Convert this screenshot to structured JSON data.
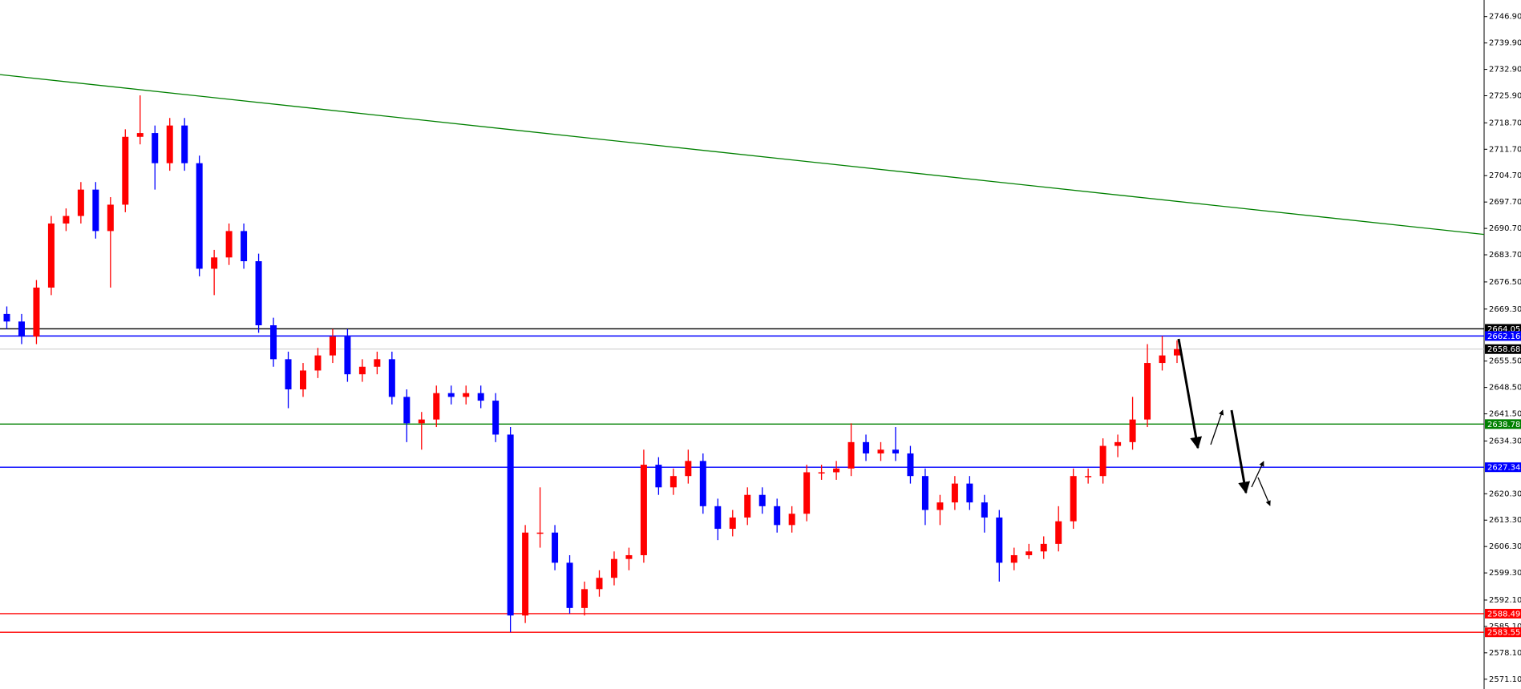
{
  "chart_data": {
    "type": "candlestick",
    "up_color": "#ff0000",
    "down_color": "#0000ff",
    "open": [
      2668,
      2666,
      2662,
      2675,
      2692,
      2694,
      2701,
      2690,
      2697,
      2715,
      2716,
      2708,
      2718,
      2708,
      2680,
      2683,
      2690,
      2682,
      2665,
      2656,
      2648,
      2653,
      2657,
      2662,
      2652,
      2654,
      2656,
      2646,
      2639,
      2640,
      2647,
      2646,
      2647,
      2645,
      2636,
      2588,
      2610,
      2610,
      2602,
      2590,
      2595,
      2598,
      2603,
      2604,
      2628,
      2622,
      2625,
      2629,
      2617,
      2611,
      2614,
      2620,
      2617,
      2612,
      2615,
      2626,
      2626,
      2627,
      2634,
      2631,
      2632,
      2631,
      2625,
      2616,
      2618,
      2623,
      2618,
      2614,
      2602,
      2604,
      2605,
      2607,
      2613,
      2625,
      2625,
      2633,
      2634,
      2640,
      2655,
      2657
    ],
    "high": [
      2670,
      2668,
      2677,
      2694,
      2696,
      2703,
      2703,
      2699,
      2717,
      2726,
      2718,
      2720,
      2720,
      2710,
      2685,
      2692,
      2692,
      2684,
      2667,
      2658,
      2655,
      2659,
      2664,
      2664,
      2656,
      2658,
      2658,
      2648,
      2642,
      2649,
      2649,
      2649,
      2649,
      2647,
      2638,
      2612,
      2622,
      2612,
      2604,
      2597,
      2600,
      2605,
      2606,
      2632,
      2630,
      2627,
      2632,
      2631,
      2619,
      2616,
      2622,
      2622,
      2619,
      2617,
      2628,
      2628,
      2629,
      2639,
      2636,
      2634,
      2638,
      2633,
      2627,
      2620,
      2625,
      2625,
      2620,
      2616,
      2606,
      2607,
      2609,
      2617,
      2627,
      2627,
      2635,
      2636,
      2646,
      2660,
      2662.16,
      2661
    ],
    "low": [
      2664,
      2660,
      2660,
      2673,
      2690,
      2692,
      2688,
      2675,
      2695,
      2713,
      2701,
      2706,
      2706,
      2678,
      2673,
      2681,
      2680,
      2663,
      2654,
      2643,
      2646,
      2651,
      2655,
      2650,
      2650,
      2652,
      2644,
      2634,
      2632,
      2638,
      2644,
      2644,
      2643,
      2634,
      2583.55,
      2586,
      2606,
      2600,
      2588.49,
      2588,
      2593,
      2596,
      2600,
      2602,
      2620,
      2620,
      2623,
      2615,
      2608,
      2609,
      2612,
      2615,
      2610,
      2610,
      2613,
      2624,
      2624,
      2625,
      2629,
      2629,
      2629,
      2623,
      2612,
      2612,
      2616,
      2616,
      2610,
      2597,
      2600,
      2603,
      2603,
      2605,
      2611,
      2623,
      2623,
      2630,
      2632,
      2638,
      2653,
      2655
    ],
    "close": [
      2666,
      2662,
      2675,
      2692,
      2694,
      2701,
      2690,
      2697,
      2715,
      2716,
      2708,
      2718,
      2708,
      2680,
      2683,
      2690,
      2682,
      2665,
      2656,
      2648,
      2653,
      2657,
      2662,
      2652,
      2654,
      2656,
      2646,
      2639,
      2640,
      2647,
      2646,
      2647,
      2645,
      2636,
      2588,
      2610,
      2610,
      2602,
      2590,
      2595,
      2598,
      2603,
      2604,
      2628,
      2622,
      2625,
      2629,
      2617,
      2611,
      2614,
      2620,
      2617,
      2612,
      2615,
      2626,
      2626,
      2627,
      2634,
      2631,
      2632,
      2631,
      2625,
      2616,
      2618,
      2623,
      2618,
      2614,
      2602,
      2604,
      2605,
      2607,
      2613,
      2625,
      2625,
      2633,
      2634,
      2640,
      2655,
      2657,
      2658.68
    ],
    "ylim": [
      2568.5,
      2751.3
    ],
    "yticks": [
      {
        "value": 2746.9,
        "label": "2746.90"
      },
      {
        "value": 2739.9,
        "label": "2739.90"
      },
      {
        "value": 2732.9,
        "label": "2732.90"
      },
      {
        "value": 2725.9,
        "label": "2725.90"
      },
      {
        "value": 2718.7,
        "label": "2718.70"
      },
      {
        "value": 2711.7,
        "label": "2711.70"
      },
      {
        "value": 2704.7,
        "label": "2704.70"
      },
      {
        "value": 2697.7,
        "label": "2697.70"
      },
      {
        "value": 2690.7,
        "label": "2690.70"
      },
      {
        "value": 2683.7,
        "label": "2683.70"
      },
      {
        "value": 2676.5,
        "label": "2676.50"
      },
      {
        "value": 2669.3,
        "label": "2669.30"
      },
      {
        "value": 2655.5,
        "label": "2655.50"
      },
      {
        "value": 2648.5,
        "label": "2648.50"
      },
      {
        "value": 2641.5,
        "label": "2641.50"
      },
      {
        "value": 2634.3,
        "label": "2634.30"
      },
      {
        "value": 2620.3,
        "label": "2620.30"
      },
      {
        "value": 2613.3,
        "label": "2613.30"
      },
      {
        "value": 2606.3,
        "label": "2606.30"
      },
      {
        "value": 2599.3,
        "label": "2599.30"
      },
      {
        "value": 2592.1,
        "label": "2592.10"
      },
      {
        "value": 2585.1,
        "label": "2585.10"
      },
      {
        "value": 2578.1,
        "label": "2578.10"
      },
      {
        "value": 2571.1,
        "label": "2571.10"
      }
    ],
    "levels": [
      {
        "value": 2664.05,
        "color": "#000000",
        "label_color": "#000000"
      },
      {
        "value": 2662.16,
        "color": "#0000ff",
        "label_color": "#0000ff"
      },
      {
        "value": 2658.68,
        "color": "#c8c8c8",
        "label_color": "#000000"
      },
      {
        "value": 2638.78,
        "color": "#008000",
        "label_color": "#008000"
      },
      {
        "value": 2627.34,
        "color": "#0000ff",
        "label_color": "#0000ff"
      },
      {
        "value": 2588.49,
        "color": "#ff0000",
        "label_color": "#ff0000"
      },
      {
        "value": 2583.55,
        "color": "#ff0000",
        "label_color": "#ff0000"
      }
    ],
    "trendline": {
      "values": [
        2731.5,
        2689.1
      ],
      "color": "#008000"
    }
  }
}
